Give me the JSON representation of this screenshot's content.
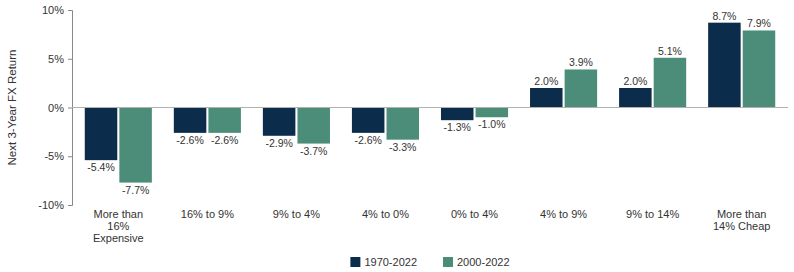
{
  "chart_data": {
    "type": "bar",
    "y_label": "Next 3-Year FX Return",
    "categories": [
      "More than 16% Expensive",
      "16% to 9%",
      "9% to 4%",
      "4% to 0%",
      "0% to 4%",
      "4% to 9%",
      "9% to 14%",
      "More than 14% Cheap"
    ],
    "series": [
      {
        "name": "1970-2022",
        "color": "#0c2c4c",
        "values": [
          -5.4,
          -2.6,
          -2.9,
          -2.6,
          -1.3,
          2.0,
          2.0,
          8.7
        ],
        "value_labels": [
          "-5.4%",
          "-2.6%",
          "-2.9%",
          "-2.6%",
          "-1.3%",
          "2.0%",
          "2.0%",
          "8.7%"
        ]
      },
      {
        "name": "2000-2022",
        "color": "#4b8d78",
        "values": [
          -7.7,
          -2.6,
          -3.7,
          -3.3,
          -1.0,
          3.9,
          5.1,
          7.9
        ],
        "value_labels": [
          "-7.7%",
          "-2.6%",
          "-3.7%",
          "-3.3%",
          "-1.0%",
          "3.9%",
          "5.1%",
          "7.9%"
        ]
      }
    ],
    "ylim": [
      -10,
      10
    ],
    "yticks": [
      {
        "value": -10,
        "label": "-10%"
      },
      {
        "value": -5,
        "label": "-5%"
      },
      {
        "value": 0,
        "label": "0%"
      },
      {
        "value": 5,
        "label": "5%"
      },
      {
        "value": 10,
        "label": "10%"
      }
    ],
    "grid": false,
    "legend": "bottom",
    "data_labels": true
  }
}
